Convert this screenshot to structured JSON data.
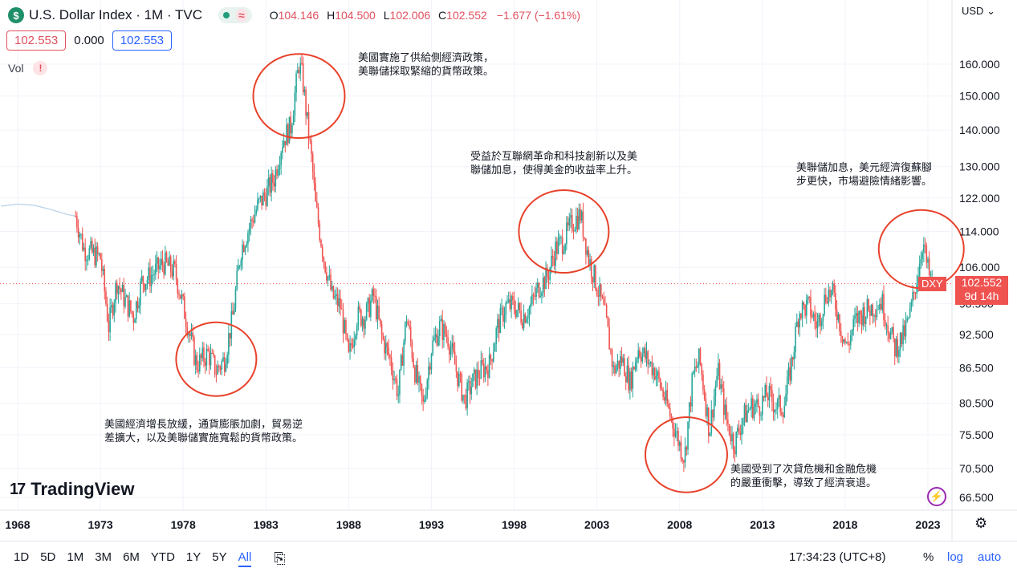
{
  "header": {
    "symbol_icon": "$",
    "title": "U.S. Dollar Index · 1M · TVC",
    "wave_icon": "≈",
    "o_label": "O",
    "o_value": "104.146",
    "h_label": "H",
    "h_value": "104.500",
    "l_label": "L",
    "l_value": "102.006",
    "c_label": "C",
    "c_value": "102.552",
    "change": "−1.677 (−1.61%)"
  },
  "price_boxes": {
    "sell": "102.553",
    "spread": "0.000",
    "buy": "102.553"
  },
  "volume_label": "Vol",
  "volume_warning": "!",
  "currency": "USD",
  "currency_chevron": "⌄",
  "price_tag": {
    "symbol": "DXY",
    "price": "102.552",
    "countdown": "9d 14h"
  },
  "logo_text": "TradingView",
  "logo_mark": "17",
  "annotations": [
    {
      "lines": [
        "美國實施了供給側經濟政策，",
        "美聯儲採取緊縮的貨幣政策。"
      ]
    },
    {
      "lines": [
        "受益於互聯網革命和科技創新以及美",
        "聯儲加息，使得美金的收益率上升。"
      ]
    },
    {
      "lines": [
        "美聯儲加息，美元經濟復蘇腳",
        "步更快，市場避險情緒影響。"
      ]
    },
    {
      "lines": [
        "美國經濟增長放緩，通貨膨脹加劇，貿易逆",
        "差擴大，以及美聯儲實施寬鬆的貨幣政策。"
      ]
    },
    {
      "lines": [
        "美國受到了次貸危機和金融危機",
        "的嚴重衝擊，導致了經濟衰退。"
      ]
    }
  ],
  "toolbar": {
    "ranges": [
      "1D",
      "5D",
      "1M",
      "3M",
      "6M",
      "YTD",
      "1Y",
      "5Y",
      "All"
    ],
    "active_range": "All",
    "calendar_icon": "📅",
    "time": "17:34:23 (UTC+8)",
    "percent": "%",
    "log": "log",
    "auto": "auto"
  },
  "icons": {
    "settings": "gear-icon",
    "alert": "lightning-icon",
    "calendar": "calendar-icon"
  },
  "colors": {
    "up": "#26a69a",
    "down": "#ef5350",
    "circle": "#e8412a",
    "pale_line": "#b7cfe8"
  },
  "chart_data": {
    "type": "candlestick",
    "title": "U.S. Dollar Index · 1M · TVC",
    "y_axis_ticks": [
      "160.000",
      "150.000",
      "140.000",
      "130.000",
      "122.000",
      "114.000",
      "106.000",
      "98.500",
      "92.500",
      "86.500",
      "80.500",
      "75.500",
      "70.500",
      "66.500"
    ],
    "x_axis_ticks": [
      "1968",
      "1973",
      "1978",
      "1983",
      "1988",
      "1993",
      "1998",
      "2003",
      "2008",
      "2013",
      "2018",
      "2023"
    ],
    "y_scale": "log",
    "ylim": [
      64,
      175
    ],
    "last_price": 102.552,
    "pre_1971_series": [
      [
        1967.0,
        120
      ],
      [
        1968.0,
        120.5
      ],
      [
        1969.0,
        120.2
      ],
      [
        1970.0,
        119.2
      ],
      [
        1971.0,
        118.0
      ],
      [
        1971.5,
        117.6
      ]
    ],
    "yearly_closes": [
      [
        1971.5,
        117.6
      ],
      [
        1972.0,
        110
      ],
      [
        1973.0,
        108
      ],
      [
        1973.5,
        94
      ],
      [
        1974.0,
        103
      ],
      [
        1974.5,
        99
      ],
      [
        1975.0,
        96
      ],
      [
        1975.5,
        103
      ],
      [
        1976.0,
        104
      ],
      [
        1976.8,
        107
      ],
      [
        1977.5,
        105
      ],
      [
        1978.0,
        98
      ],
      [
        1978.8,
        87
      ],
      [
        1979.5,
        89
      ],
      [
        1980.0,
        86
      ],
      [
        1980.5,
        88
      ],
      [
        1981.0,
        96
      ],
      [
        1981.5,
        110
      ],
      [
        1982.0,
        115
      ],
      [
        1982.5,
        120
      ],
      [
        1983.0,
        123
      ],
      [
        1983.5,
        127
      ],
      [
        1984.0,
        137
      ],
      [
        1984.5,
        141
      ],
      [
        1985.0,
        160
      ],
      [
        1985.2,
        156
      ],
      [
        1985.5,
        142
      ],
      [
        1985.8,
        130
      ],
      [
        1986.0,
        120
      ],
      [
        1986.5,
        108
      ],
      [
        1987.0,
        100
      ],
      [
        1987.5,
        98
      ],
      [
        1988.0,
        88
      ],
      [
        1988.5,
        96
      ],
      [
        1989.0,
        96
      ],
      [
        1989.5,
        100
      ],
      [
        1990.0,
        92
      ],
      [
        1990.5,
        88
      ],
      [
        1991.0,
        82
      ],
      [
        1991.5,
        96
      ],
      [
        1992.0,
        86
      ],
      [
        1992.5,
        80
      ],
      [
        1993.0,
        90
      ],
      [
        1993.5,
        94
      ],
      [
        1994.0,
        92
      ],
      [
        1994.5,
        86
      ],
      [
        1995.0,
        81
      ],
      [
        1995.5,
        84
      ],
      [
        1996.0,
        86
      ],
      [
        1996.5,
        87
      ],
      [
        1997.0,
        94
      ],
      [
        1997.5,
        98
      ],
      [
        1998.0,
        98
      ],
      [
        1998.5,
        96
      ],
      [
        1999.0,
        98
      ],
      [
        1999.5,
        102
      ],
      [
        2000.0,
        104
      ],
      [
        2000.5,
        110
      ],
      [
        2001.0,
        112
      ],
      [
        2001.5,
        116
      ],
      [
        2002.0,
        118
      ],
      [
        2002.5,
        108
      ],
      [
        2003.0,
        102
      ],
      [
        2003.5,
        96
      ],
      [
        2004.0,
        86
      ],
      [
        2004.5,
        88
      ],
      [
        2005.0,
        84
      ],
      [
        2005.5,
        90
      ],
      [
        2006.0,
        88
      ],
      [
        2006.5,
        86
      ],
      [
        2007.0,
        82
      ],
      [
        2007.5,
        78
      ],
      [
        2008.0,
        74
      ],
      [
        2008.3,
        72
      ],
      [
        2008.8,
        85
      ],
      [
        2009.2,
        88
      ],
      [
        2009.8,
        76
      ],
      [
        2010.3,
        86
      ],
      [
        2010.8,
        78
      ],
      [
        2011.3,
        74
      ],
      [
        2011.8,
        78
      ],
      [
        2012.3,
        80
      ],
      [
        2012.8,
        80
      ],
      [
        2013.3,
        82
      ],
      [
        2013.8,
        80
      ],
      [
        2014.3,
        80
      ],
      [
        2014.8,
        88
      ],
      [
        2015.2,
        97
      ],
      [
        2015.8,
        98
      ],
      [
        2016.3,
        94
      ],
      [
        2016.9,
        101
      ],
      [
        2017.3,
        100
      ],
      [
        2017.8,
        93
      ],
      [
        2018.1,
        90
      ],
      [
        2018.6,
        95
      ],
      [
        2019.2,
        97
      ],
      [
        2019.8,
        98
      ],
      [
        2020.2,
        99
      ],
      [
        2020.7,
        93
      ],
      [
        2021.0,
        90
      ],
      [
        2021.5,
        92
      ],
      [
        2021.9,
        96
      ],
      [
        2022.3,
        103
      ],
      [
        2022.7,
        112
      ],
      [
        2022.9,
        107
      ],
      [
        2023.1,
        104
      ],
      [
        2023.3,
        102.55
      ]
    ],
    "highlighted_periods": [
      "1980",
      "1985",
      "2001",
      "2008",
      "2022"
    ]
  }
}
